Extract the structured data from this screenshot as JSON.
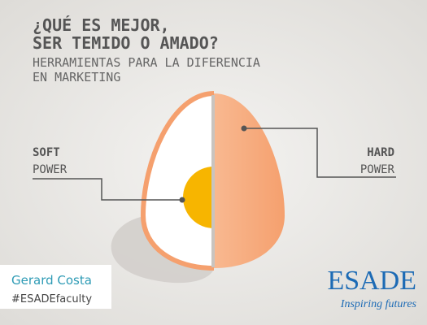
{
  "header": {
    "title": [
      "¿QUÉ ES MEJOR,",
      "SER TEMIDO O AMADO?"
    ],
    "subtitle": [
      "HERRAMIENTAS PARA LA DIFERENCIA",
      "EN MARKETING"
    ]
  },
  "labels": {
    "soft": [
      "SOFT",
      "POWER"
    ],
    "hard": [
      "HARD",
      "POWER"
    ]
  },
  "author": {
    "name": "Gerard Costa",
    "tag": "#ESADEfaculty"
  },
  "logo": {
    "name": "ESADE",
    "tagline": "Inspiring futures"
  }
}
